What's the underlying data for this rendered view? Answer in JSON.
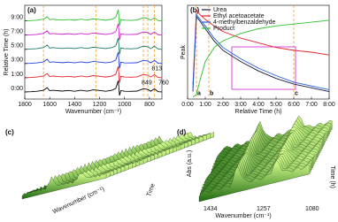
{
  "chart_data": [
    {
      "type": "line",
      "title": "(a)",
      "x_label": "Wavenumber (cm⁻¹)",
      "y_label": "Relative Time (h)",
      "x": [
        1800,
        1750,
        1700,
        1650,
        1620,
        1600,
        1580,
        1500,
        1450,
        1400,
        1350,
        1300,
        1250,
        1200,
        1150,
        1100,
        1070,
        1050,
        1040,
        1030,
        1000,
        950,
        900,
        850,
        813,
        790,
        760,
        730,
        700
      ],
      "xlim": [
        1800,
        700
      ],
      "xticks": [
        1800,
        1600,
        1400,
        1200,
        1000,
        800
      ],
      "ylim": [
        -0.2,
        6.4
      ],
      "yticks": [
        {
          "value": 0.3,
          "label": "0:00"
        },
        {
          "value": 1.3,
          "label": "1:00"
        },
        {
          "value": 2.3,
          "label": "3:00"
        },
        {
          "value": 3.3,
          "label": "5:00"
        },
        {
          "value": 4.3,
          "label": "7:00"
        },
        {
          "value": 5.3,
          "label": "9:00"
        }
      ],
      "series": [
        {
          "color": "#000000",
          "values": [
            0.3,
            0.32,
            0.35,
            0.42,
            0.6,
            0.38,
            0.42,
            0.36,
            0.4,
            0.35,
            0.42,
            0.36,
            0.45,
            0.4,
            0.35,
            0.42,
            0.55,
            1.1,
            0.05,
            0.4,
            0.35,
            0.34,
            0.36,
            0.52,
            0.48,
            0.35,
            0.52,
            0.32,
            0.3
          ]
        },
        {
          "color": "#e8202a",
          "values": [
            1.3,
            1.32,
            1.35,
            1.42,
            1.6,
            1.38,
            1.42,
            1.36,
            1.4,
            1.35,
            1.42,
            1.36,
            1.45,
            1.4,
            1.35,
            1.42,
            1.55,
            2.1,
            0.95,
            1.4,
            1.35,
            1.34,
            1.36,
            1.52,
            1.48,
            1.35,
            1.52,
            1.32,
            1.3
          ]
        },
        {
          "color": "#2040e0",
          "values": [
            2.3,
            2.32,
            2.35,
            2.42,
            2.6,
            2.38,
            2.42,
            2.36,
            2.4,
            2.35,
            2.42,
            2.36,
            2.45,
            2.4,
            2.35,
            2.42,
            2.55,
            3.1,
            1.95,
            2.4,
            2.35,
            2.34,
            2.36,
            2.52,
            2.48,
            2.35,
            2.52,
            2.32,
            2.3
          ]
        },
        {
          "color": "#1f7a6a",
          "values": [
            3.3,
            3.32,
            3.35,
            3.42,
            3.6,
            3.38,
            3.42,
            3.36,
            3.4,
            3.35,
            3.42,
            3.36,
            3.45,
            3.4,
            3.35,
            3.42,
            3.55,
            4.1,
            2.95,
            3.4,
            3.35,
            3.34,
            3.36,
            3.52,
            3.48,
            3.35,
            3.52,
            3.32,
            3.3
          ]
        },
        {
          "color": "#d020d0",
          "values": [
            4.3,
            4.32,
            4.35,
            4.42,
            4.6,
            4.38,
            4.42,
            4.36,
            4.4,
            4.35,
            4.42,
            4.36,
            4.45,
            4.4,
            4.35,
            4.42,
            4.55,
            5.1,
            3.95,
            4.4,
            4.35,
            4.34,
            4.36,
            4.52,
            4.48,
            4.35,
            4.52,
            4.32,
            4.3
          ]
        },
        {
          "color": "#30c030",
          "values": [
            5.3,
            5.32,
            5.35,
            5.42,
            5.6,
            5.38,
            5.42,
            5.36,
            5.4,
            5.35,
            5.42,
            5.36,
            5.45,
            5.4,
            5.35,
            5.42,
            5.55,
            6.1,
            4.95,
            5.4,
            5.35,
            5.34,
            5.36,
            5.52,
            5.48,
            5.35,
            5.52,
            5.32,
            5.3
          ]
        }
      ],
      "reference_lines": [
        1650,
        1230,
        849,
        813,
        760
      ],
      "reference_color": "#f0a030",
      "annotations": [
        {
          "text": "849",
          "x": 870,
          "y": 0.95
        },
        {
          "text": "813",
          "x": 790,
          "y": 1.95
        },
        {
          "text": "760",
          "x": 735,
          "y": 0.95
        }
      ]
    },
    {
      "type": "line",
      "title": "(b)",
      "x_label": "Relative Time (h)",
      "y_label": "Peak",
      "x": [
        0.3,
        0.5,
        0.7,
        1,
        1.5,
        2,
        3,
        4,
        5,
        6,
        7,
        8
      ],
      "xlim": [
        0,
        8
      ],
      "xticks": [
        {
          "value": 0,
          "label": "0:00"
        },
        {
          "value": 1,
          "label": "1:00"
        },
        {
          "value": 2,
          "label": "2:00"
        },
        {
          "value": 3,
          "label": "3:00"
        },
        {
          "value": 4,
          "label": "4:00"
        },
        {
          "value": 5,
          "label": "5:00"
        },
        {
          "value": 6,
          "label": "6:00"
        },
        {
          "value": 7,
          "label": "7:00"
        },
        {
          "value": 8,
          "label": "8:00"
        }
      ],
      "ylim": [
        0,
        1
      ],
      "series": [
        {
          "name": "Urea",
          "color": "#1a1a40",
          "values": [
            0.08,
            0.88,
            0.83,
            0.75,
            0.62,
            0.52,
            0.4,
            0.3,
            0.22,
            0.16,
            0.12,
            0.08
          ]
        },
        {
          "name": "Ethyl acetoacetate",
          "color": "#e8202a",
          "values": [
            0.15,
            0.95,
            0.9,
            0.85,
            0.78,
            0.72,
            0.65,
            0.6,
            0.55,
            0.52,
            0.5,
            0.47
          ]
        },
        {
          "name": "4-methylbenzaldehyde",
          "color": "#2060e0",
          "values": [
            0.1,
            0.9,
            0.85,
            0.78,
            0.65,
            0.55,
            0.43,
            0.33,
            0.25,
            0.18,
            0.14,
            0.1
          ]
        },
        {
          "name": "Product",
          "color": "#30c030",
          "values": [
            0.02,
            0.05,
            0.2,
            0.4,
            0.55,
            0.62,
            0.7,
            0.75,
            0.78,
            0.8,
            0.82,
            0.84
          ]
        }
      ],
      "reference_lines": [
        0.5,
        1.2,
        6
      ],
      "reference_color": "#f0a030",
      "annotations": [
        {
          "text": "a",
          "x": 0.5,
          "y": 0.06
        },
        {
          "text": "b",
          "x": 1.2,
          "y": 0.06
        },
        {
          "text": "c",
          "x": 6,
          "y": 0.06
        }
      ]
    }
  ],
  "panel_c": {
    "title": "(c)",
    "x_label": "Wavenumber (cm⁻¹)",
    "y_label": "Time"
  },
  "panel_d": {
    "title": "(d)",
    "x_label": "Wavenumber (cm⁻¹)",
    "xticks": [
      "1434",
      "1257",
      "1080"
    ],
    "y_label": "Time (h)",
    "z_label": "Abs (a.u.)"
  }
}
